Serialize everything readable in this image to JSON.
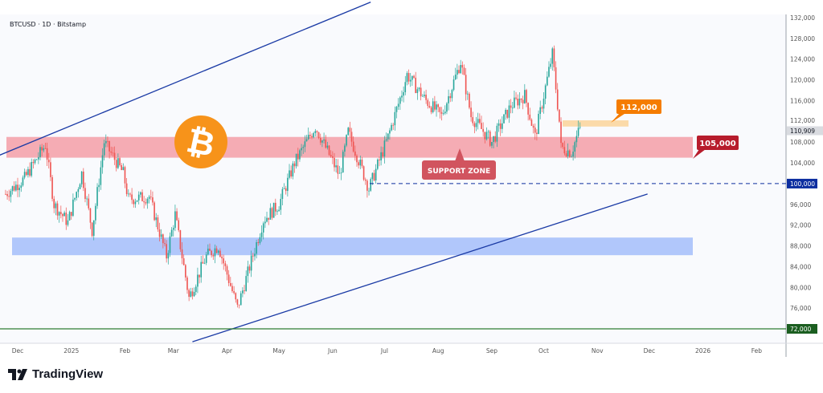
{
  "chart_data": {
    "type": "candlestick",
    "title": "BTCUSD · 1D · Bitstamp",
    "ylim": [
      70000,
      132000
    ],
    "y_ticks": [
      132000,
      128000,
      124000,
      120000,
      116000,
      112000,
      108000,
      104000,
      100000,
      96000,
      92000,
      88000,
      84000,
      80000,
      76000,
      72000
    ],
    "y_tick_labels": [
      "132,000",
      "128,000",
      "124,000",
      "120,000",
      "116,000",
      "112,000",
      "108,000",
      "104,000",
      "100,000",
      "96,000",
      "92,000",
      "88,000",
      "84,000",
      "80,000",
      "76,000",
      "72,000"
    ],
    "x_ticks": [
      {
        "date": "2024-12-01",
        "label": "Dec"
      },
      {
        "date": "2025-01-01",
        "label": "2025"
      },
      {
        "date": "2025-02-01",
        "label": "Feb"
      },
      {
        "date": "2025-03-01",
        "label": "Mar"
      },
      {
        "date": "2025-04-01",
        "label": "Apr"
      },
      {
        "date": "2025-05-01",
        "label": "May"
      },
      {
        "date": "2025-06-01",
        "label": "Jun"
      },
      {
        "date": "2025-07-01",
        "label": "Jul"
      },
      {
        "date": "2025-08-01",
        "label": "Aug"
      },
      {
        "date": "2025-09-01",
        "label": "Sep"
      },
      {
        "date": "2025-10-01",
        "label": "Oct"
      },
      {
        "date": "2025-11-01",
        "label": "Nov"
      },
      {
        "date": "2025-12-01",
        "label": "Dec"
      },
      {
        "date": "2026-01-01",
        "label": "2026"
      },
      {
        "date": "2026-02-01",
        "label": "Feb"
      }
    ],
    "price_path": [
      [
        "2024-11-24",
        98000
      ],
      [
        "2024-12-05",
        101000
      ],
      [
        "2024-12-17",
        107500
      ],
      [
        "2024-12-22",
        96000
      ],
      [
        "2024-12-30",
        92500
      ],
      [
        "2025-01-07",
        102000
      ],
      [
        "2025-01-13",
        91000
      ],
      [
        "2025-01-20",
        108000
      ],
      [
        "2025-01-31",
        102000
      ],
      [
        "2025-02-03",
        97000
      ],
      [
        "2025-02-15",
        97500
      ],
      [
        "2025-02-25",
        86000
      ],
      [
        "2025-03-02",
        94000
      ],
      [
        "2025-03-10",
        78000
      ],
      [
        "2025-03-20",
        86000
      ],
      [
        "2025-03-27",
        88000
      ],
      [
        "2025-04-07",
        76000
      ],
      [
        "2025-04-22",
        93000
      ],
      [
        "2025-05-01",
        96000
      ],
      [
        "2025-05-10",
        104000
      ],
      [
        "2025-05-22",
        111000
      ],
      [
        "2025-06-05",
        101500
      ],
      [
        "2025-06-10",
        110000
      ],
      [
        "2025-06-22",
        99000
      ],
      [
        "2025-07-03",
        109000
      ],
      [
        "2025-07-11",
        117500
      ],
      [
        "2025-07-14",
        121000
      ],
      [
        "2025-07-25",
        116000
      ],
      [
        "2025-08-03",
        113000
      ],
      [
        "2025-08-14",
        123500
      ],
      [
        "2025-08-20",
        113000
      ],
      [
        "2025-09-01",
        108000
      ],
      [
        "2025-09-12",
        115000
      ],
      [
        "2025-09-20",
        117000
      ],
      [
        "2025-09-26",
        109000
      ],
      [
        "2025-10-06",
        125000
      ],
      [
        "2025-10-10",
        112000
      ],
      [
        "2025-10-11",
        107000
      ],
      [
        "2025-10-17",
        106000
      ],
      [
        "2025-10-22",
        110909
      ]
    ],
    "current_price": {
      "value": 110909,
      "label": "110,909"
    },
    "levels": [
      {
        "name": "resistance",
        "value": 112000,
        "label": "112,000",
        "color": "#f57c00"
      },
      {
        "name": "support",
        "value": 105000,
        "label": "105,000",
        "color": "#b71c2c"
      },
      {
        "name": "psychological",
        "value": 100000,
        "label": "100,000",
        "color": "#0d2ea0"
      },
      {
        "name": "low",
        "value": 72000,
        "label": "72,000",
        "color": "#1b5e20"
      }
    ],
    "zones": [
      {
        "name": "support-zone",
        "from": 105000,
        "to": 109000,
        "color": "#f4a3ac",
        "label": "SUPPORT ZONE"
      },
      {
        "name": "blue-zone",
        "from": 86200,
        "to": 89600,
        "color": "#a9c1fb"
      },
      {
        "name": "orange-zone",
        "from": 111000,
        "to": 112200,
        "color": "#fbd49a"
      }
    ],
    "trendlines": [
      {
        "name": "upper-channel",
        "from": [
          "2024-11-17",
          105000
        ],
        "to": [
          "2025-06-23",
          135000
        ],
        "color": "#1a3aa5"
      },
      {
        "name": "lower-channel",
        "from": [
          "2025-03-12",
          69500
        ],
        "to": [
          "2025-11-30",
          98000
        ],
        "color": "#1a3aa5"
      }
    ],
    "colors": {
      "up": "#26a69a",
      "down": "#ef5350",
      "background": "#f9fafd"
    }
  },
  "footer": {
    "brand": "TradingView"
  }
}
